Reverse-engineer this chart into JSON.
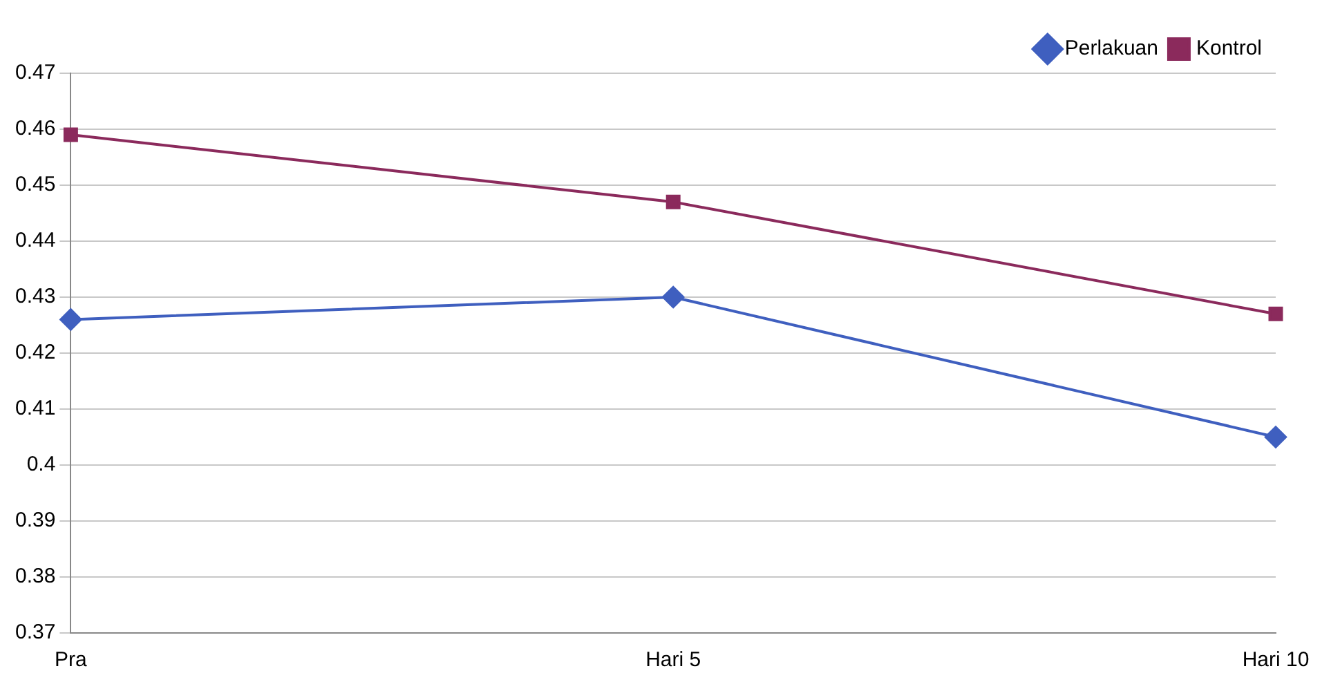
{
  "chart_data": {
    "type": "line",
    "categories": [
      "Pra",
      "Hari 5",
      "Hari 10"
    ],
    "series": [
      {
        "name": "Perlakuan",
        "color": "#3f5fbf",
        "marker": "diamond",
        "values": [
          0.426,
          0.43,
          0.405
        ]
      },
      {
        "name": "Kontrol",
        "color": "#8b2a5c",
        "marker": "square",
        "values": [
          0.459,
          0.447,
          0.427
        ]
      }
    ],
    "ylim": [
      0.37,
      0.47
    ],
    "yticks": [
      0.37,
      0.38,
      0.39,
      0.4,
      0.41,
      0.42,
      0.43,
      0.44,
      0.45,
      0.46,
      0.47
    ],
    "grid": "y",
    "legend": "top right"
  }
}
